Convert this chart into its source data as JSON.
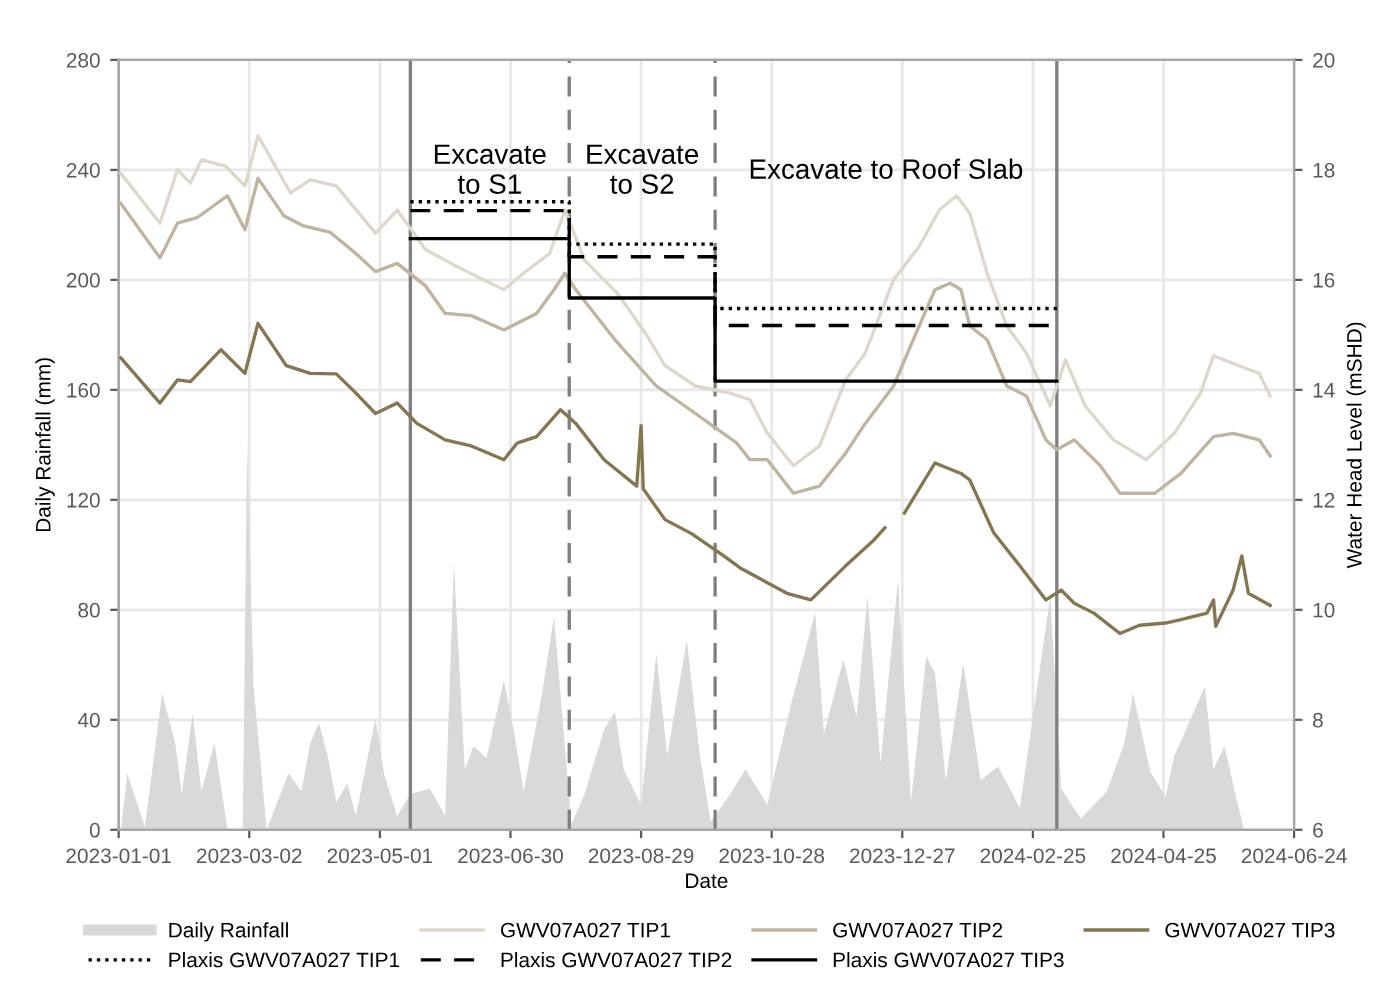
{
  "chart_data": {
    "type": "line",
    "xlabel": "Date",
    "ylabel": "Daily Rainfall (mm)",
    "y2label": "Water Head Level (mSHD)",
    "xlim": [
      "2023-01-01",
      "2024-06-24"
    ],
    "xticks": [
      "2023-01-01",
      "2023-03-02",
      "2023-05-01",
      "2023-06-30",
      "2023-08-29",
      "2023-10-28",
      "2023-12-27",
      "2024-02-25",
      "2024-04-25",
      "2024-06-24"
    ],
    "ylim": [
      0,
      280
    ],
    "yticks": [
      0,
      40,
      80,
      120,
      160,
      200,
      240,
      280
    ],
    "y2lim": [
      6,
      20
    ],
    "y2ticks": [
      6,
      8,
      10,
      12,
      14,
      16,
      18,
      20
    ],
    "grid": true,
    "legend": "bottom",
    "series": [
      {
        "name": "Daily Rainfall",
        "type": "area",
        "color": "#d9d9d9",
        "x": [
          "2023-01-02",
          "2023-01-05",
          "2023-01-13",
          "2023-01-21",
          "2023-01-27",
          "2023-01-30",
          "2023-02-04",
          "2023-02-08",
          "2023-02-14",
          "2023-02-20",
          "2023-02-27",
          "2023-03-01",
          "2023-03-04",
          "2023-03-10",
          "2023-03-20",
          "2023-03-26",
          "2023-03-30",
          "2023-04-03",
          "2023-04-07",
          "2023-04-11",
          "2023-04-16",
          "2023-04-20",
          "2023-04-29",
          "2023-05-03",
          "2023-05-09",
          "2023-05-15",
          "2023-05-24",
          "2023-05-31",
          "2023-06-04",
          "2023-06-09",
          "2023-06-13",
          "2023-06-19",
          "2023-06-27",
          "2023-07-02",
          "2023-07-06",
          "2023-07-14",
          "2023-07-20",
          "2023-07-28",
          "2023-08-03",
          "2023-08-12",
          "2023-08-17",
          "2023-08-21",
          "2023-08-29",
          "2023-09-05",
          "2023-09-10",
          "2023-09-19",
          "2023-09-25",
          "2023-09-30",
          "2023-10-09",
          "2023-10-16",
          "2023-10-26",
          "2023-11-06",
          "2023-11-17",
          "2023-11-21",
          "2023-11-30",
          "2023-12-06",
          "2023-12-11",
          "2023-12-17",
          "2023-12-25",
          "2023-12-31",
          "2024-01-07",
          "2024-01-11",
          "2024-01-16",
          "2024-01-24",
          "2024-02-01",
          "2024-02-09",
          "2024-02-19",
          "2024-03-04",
          "2024-03-09",
          "2024-03-18",
          "2024-03-30",
          "2024-04-07",
          "2024-04-11",
          "2024-04-19",
          "2024-04-26",
          "2024-04-30",
          "2024-05-04",
          "2024-05-14",
          "2024-05-18",
          "2024-05-23",
          "2024-05-28",
          "2024-06-01"
        ],
        "values": [
          0,
          20.6,
          1,
          49.7,
          31.5,
          13,
          42.4,
          14,
          31.5,
          0,
          0,
          140,
          52,
          0,
          20.6,
          14,
          31.5,
          38.8,
          27,
          10,
          17,
          5,
          40.7,
          20,
          5,
          13,
          15,
          5,
          97,
          22,
          30.5,
          26,
          54.5,
          34,
          14,
          47,
          77.6,
          2,
          13,
          36.4,
          43,
          22,
          9,
          64,
          27,
          69,
          27,
          3,
          13,
          22,
          9,
          46,
          79,
          35,
          62,
          41,
          85,
          24,
          91,
          10,
          63,
          57,
          18,
          60.6,
          18,
          23,
          8,
          85,
          15,
          4,
          14,
          31.5,
          49.7,
          21,
          12,
          27,
          34,
          52,
          22,
          30.5,
          13,
          0
        ]
      },
      {
        "name": "GWV07A027 TIP1",
        "axis": "y2",
        "color": "#ddd8cb",
        "x": [
          "2023-01-02",
          "2023-01-20",
          "2023-01-28",
          "2023-02-03",
          "2023-02-08",
          "2023-02-19",
          "2023-02-28",
          "2023-03-06",
          "2023-03-21",
          "2023-03-30",
          "2023-04-11",
          "2023-04-29",
          "2023-05-09",
          "2023-05-22",
          "2023-06-05",
          "2023-06-27",
          "2023-07-06",
          "2023-07-18",
          "2023-07-25",
          "2023-08-03",
          "2023-08-18",
          "2023-08-31",
          "2023-09-09",
          "2023-09-23",
          "2023-10-09",
          "2023-10-18",
          "2023-10-26",
          "2023-11-07",
          "2023-11-19",
          "2023-12-01",
          "2023-12-10",
          "2023-12-23",
          "2024-01-04",
          "2024-01-13",
          "2024-01-21",
          "2024-01-27",
          "2024-02-04",
          "2024-02-13",
          "2024-02-22",
          "2024-03-04",
          "2024-03-11",
          "2024-03-20",
          "2024-04-02",
          "2024-04-17",
          "2024-04-30",
          "2024-05-12",
          "2024-05-18",
          "2024-05-27",
          "2024-06-08",
          "2024-06-13"
        ],
        "values": [
          17.94,
          17.03,
          18.0,
          17.76,
          18.18,
          18.07,
          17.71,
          18.62,
          17.58,
          17.82,
          17.71,
          16.85,
          17.27,
          16.55,
          16.25,
          15.82,
          16.12,
          16.48,
          17.27,
          16.36,
          15.76,
          15.03,
          14.44,
          14.07,
          13.94,
          13.82,
          13.21,
          12.62,
          12.98,
          14.18,
          14.67,
          16.0,
          16.62,
          17.27,
          17.53,
          17.21,
          16.12,
          15.16,
          14.67,
          13.71,
          14.55,
          13.71,
          13.09,
          12.73,
          13.21,
          13.94,
          14.62,
          14.48,
          14.3,
          13.89
        ]
      },
      {
        "name": "GWV07A027 TIP2",
        "axis": "y2",
        "color": "#bfb49f",
        "x": [
          "2023-01-02",
          "2023-01-20",
          "2023-01-28",
          "2023-02-06",
          "2023-02-20",
          "2023-02-28",
          "2023-03-06",
          "2023-03-18",
          "2023-03-27",
          "2023-04-08",
          "2023-04-20",
          "2023-04-29",
          "2023-05-09",
          "2023-05-22",
          "2023-05-31",
          "2023-06-12",
          "2023-06-27",
          "2023-07-12",
          "2023-07-20",
          "2023-07-25",
          "2023-07-30",
          "2023-08-17",
          "2023-09-05",
          "2023-09-23",
          "2023-10-12",
          "2023-10-18",
          "2023-10-26",
          "2023-11-07",
          "2023-11-19",
          "2023-12-01",
          "2023-12-10",
          "2023-12-23",
          "2024-01-01",
          "2024-01-11",
          "2024-01-18",
          "2024-01-23",
          "2024-01-27",
          "2024-02-04",
          "2024-02-13",
          "2024-02-22",
          "2024-03-02",
          "2024-03-07",
          "2024-03-15",
          "2024-03-27",
          "2024-04-05",
          "2024-04-21",
          "2024-05-03",
          "2024-05-18",
          "2024-05-27",
          "2024-06-08",
          "2024-06-13"
        ],
        "values": [
          17.39,
          16.4,
          17.03,
          17.13,
          17.53,
          16.91,
          17.85,
          17.16,
          16.98,
          16.87,
          16.48,
          16.15,
          16.3,
          15.89,
          15.39,
          15.35,
          15.09,
          15.39,
          15.82,
          16.12,
          15.82,
          14.91,
          14.07,
          13.57,
          13.03,
          12.73,
          12.73,
          12.12,
          12.25,
          12.85,
          13.39,
          14.07,
          14.91,
          15.82,
          15.94,
          15.82,
          15.16,
          14.91,
          14.07,
          13.89,
          13.09,
          12.91,
          13.09,
          12.62,
          12.12,
          12.12,
          12.48,
          13.15,
          13.21,
          13.09,
          12.8
        ]
      },
      {
        "name": "GWV07A027 TIP3",
        "axis": "y2",
        "color": "#857652",
        "x": [
          "2023-01-02",
          "2023-01-20",
          "2023-01-28",
          "2023-02-03",
          "2023-02-17",
          "2023-02-28",
          "2023-03-06",
          "2023-03-19",
          "2023-03-30",
          "2023-04-11",
          "2023-04-20",
          "2023-04-29",
          "2023-05-09",
          "2023-05-18",
          "2023-05-31",
          "2023-06-12",
          "2023-06-27",
          "2023-07-03",
          "2023-07-12",
          "2023-07-23",
          "2023-07-30",
          "2023-08-12",
          "2023-08-27",
          "2023-08-29",
          "2023-08-30",
          "2023-09-09",
          "2023-09-21",
          "2023-10-06",
          "2023-10-14",
          "2023-11-04",
          "2023-11-15",
          "2023-12-01",
          "2023-12-14",
          "2023-12-19",
          "2023-12-22",
          "2023-12-28",
          "2024-01-11",
          "2024-01-23",
          "2024-01-27",
          "2024-02-07",
          "2024-02-19",
          "2024-03-02",
          "2024-03-09",
          "2024-03-15",
          "2024-03-24",
          "2024-04-05",
          "2024-04-14",
          "2024-04-26",
          "2024-05-03",
          "2024-05-15",
          "2024-05-18",
          "2024-05-19",
          "2024-05-27",
          "2024-05-31",
          "2024-06-03",
          "2024-06-13"
        ],
        "values": [
          14.58,
          13.76,
          14.18,
          14.15,
          14.73,
          14.3,
          15.21,
          14.44,
          14.3,
          14.29,
          13.94,
          13.57,
          13.76,
          13.39,
          13.09,
          12.98,
          12.73,
          13.03,
          13.15,
          13.64,
          13.39,
          12.73,
          12.25,
          13.35,
          12.2,
          11.64,
          11.39,
          10.98,
          10.75,
          10.3,
          10.18,
          10.8,
          11.27,
          11.49,
          null,
          11.76,
          12.67,
          12.48,
          12.36,
          11.4,
          10.8,
          10.18,
          10.36,
          10.12,
          9.94,
          9.57,
          9.72,
          9.76,
          9.82,
          9.94,
          10.18,
          9.7,
          10.36,
          10.98,
          10.3,
          10.08
        ]
      },
      {
        "name": "Plaxis GWV07A027 TIP1",
        "type": "step",
        "axis": "y2",
        "color": "#000000",
        "line_style": "dotted",
        "x": [
          "2023-05-15",
          "2023-07-27",
          "2023-10-02",
          "2024-03-07"
        ],
        "values": [
          17.42,
          16.65,
          15.48,
          15.48
        ]
      },
      {
        "name": "Plaxis GWV07A027 TIP2",
        "type": "step",
        "axis": "y2",
        "color": "#000000",
        "line_style": "dashed",
        "x": [
          "2023-05-15",
          "2023-07-27",
          "2023-10-02",
          "2024-03-07"
        ],
        "values": [
          17.26,
          16.42,
          15.17,
          15.17
        ]
      },
      {
        "name": "Plaxis GWV07A027 TIP3",
        "type": "step",
        "axis": "y2",
        "color": "#000000",
        "line_style": "solid",
        "x": [
          "2023-05-15",
          "2023-07-27",
          "2023-10-02",
          "2024-03-07"
        ],
        "values": [
          16.75,
          15.67,
          14.16,
          14.16
        ]
      }
    ],
    "ref_lines": [
      {
        "axis": "x",
        "value": "2023-05-15",
        "color": "#808080",
        "line_style": "solid"
      },
      {
        "axis": "x",
        "value": "2023-07-27",
        "color": "#808080",
        "line_style": "dashed"
      },
      {
        "axis": "x",
        "value": "2023-10-02",
        "color": "#808080",
        "line_style": "dashed"
      },
      {
        "axis": "x",
        "value": "2024-03-07",
        "color": "#808080",
        "line_style": "solid"
      }
    ],
    "annotations": [
      "Excavate\nto S1",
      "Excavate\nto S2",
      "Excavate to Roof Slab"
    ]
  }
}
